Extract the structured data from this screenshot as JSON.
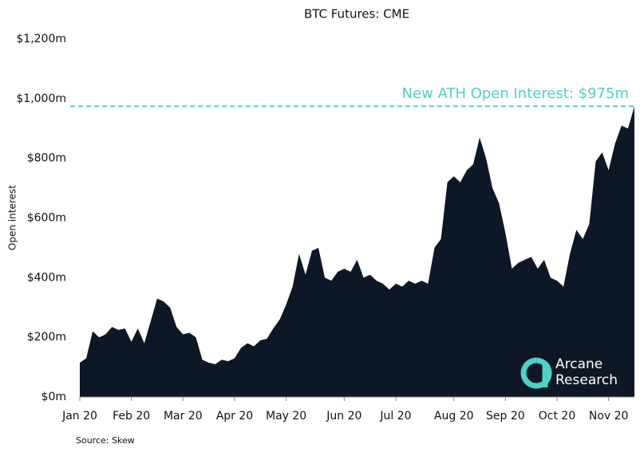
{
  "chart_data": {
    "type": "area",
    "title": "BTC Futures: CME",
    "y_label": "Open interest",
    "annotation": "New ATH Open Interest: $975m",
    "ath_value": 975,
    "ath_color": "#4fd1c5",
    "source": "Source: Skew",
    "logo": [
      "Arcane",
      "Research"
    ],
    "color": "#0d1726",
    "categories": [
      "Jan 20",
      null,
      null,
      null,
      null,
      null,
      null,
      null,
      "Feb 20",
      null,
      null,
      null,
      null,
      null,
      null,
      null,
      "Mar 20",
      null,
      null,
      null,
      null,
      null,
      null,
      null,
      "Apr 20",
      null,
      null,
      null,
      null,
      null,
      null,
      null,
      "May 20",
      null,
      null,
      null,
      null,
      null,
      null,
      null,
      null,
      "Jun 20",
      null,
      null,
      null,
      null,
      null,
      null,
      null,
      "Jul 20",
      null,
      null,
      null,
      null,
      null,
      null,
      null,
      null,
      "Aug 20",
      null,
      null,
      null,
      null,
      null,
      null,
      null,
      "Sep 20",
      null,
      null,
      null,
      null,
      null,
      null,
      null,
      "Oct 20",
      null,
      null,
      null,
      null,
      null,
      null,
      null,
      "Nov 20",
      null,
      null,
      null,
      null
    ],
    "values": [
      115,
      130,
      220,
      200,
      210,
      235,
      225,
      230,
      185,
      230,
      180,
      255,
      330,
      320,
      300,
      235,
      210,
      215,
      200,
      125,
      115,
      110,
      125,
      120,
      130,
      165,
      180,
      170,
      190,
      195,
      230,
      260,
      310,
      370,
      480,
      410,
      490,
      500,
      400,
      390,
      420,
      430,
      420,
      460,
      400,
      410,
      390,
      380,
      360,
      380,
      370,
      390,
      380,
      390,
      380,
      500,
      530,
      720,
      740,
      720,
      760,
      780,
      870,
      800,
      700,
      650,
      550,
      430,
      450,
      460,
      470,
      430,
      460,
      400,
      390,
      370,
      480,
      560,
      530,
      580,
      790,
      820,
      760,
      850,
      910,
      900,
      975
    ],
    "ylim": [
      0,
      1200
    ],
    "yticks": [
      {
        "value": 0,
        "label": "$0m"
      },
      {
        "value": 200,
        "label": "$200m"
      },
      {
        "value": 400,
        "label": "$400m"
      },
      {
        "value": 600,
        "label": "$600m"
      },
      {
        "value": 800,
        "label": "$800m"
      },
      {
        "value": 1000,
        "label": "$1,000m"
      },
      {
        "value": 1200,
        "label": "$1,200m"
      }
    ]
  }
}
